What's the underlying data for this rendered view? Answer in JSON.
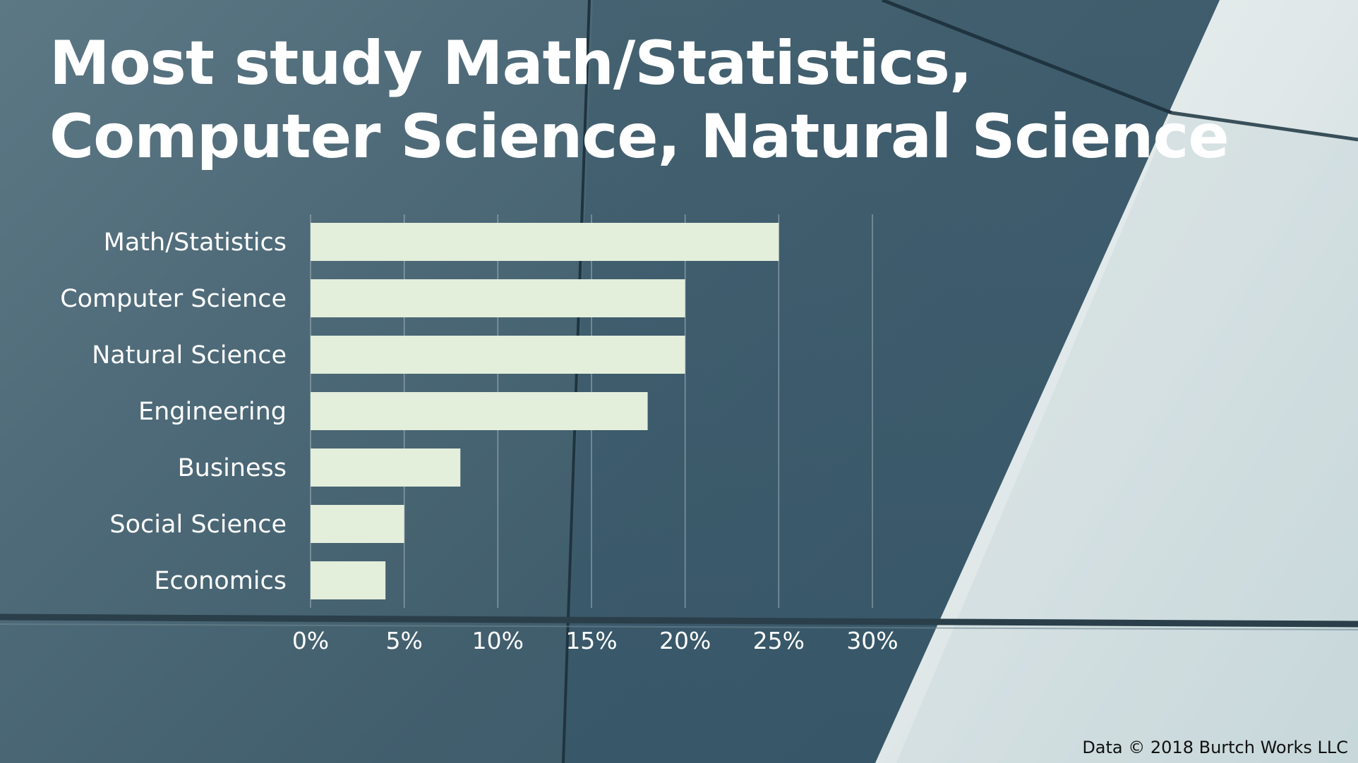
{
  "slide": {
    "title_lines": [
      "Most study Math/Statistics,",
      "Computer Science, Natural Science"
    ],
    "source": "Data © 2018 Burtch Works LLC"
  },
  "colors": {
    "bar": "#e3eedb",
    "text": "#ffffff",
    "background": "#4a6472"
  },
  "chart_data": {
    "type": "bar",
    "orientation": "horizontal",
    "categories": [
      "Math/Statistics",
      "Computer Science",
      "Natural Science",
      "Engineering",
      "Business",
      "Social Science",
      "Economics"
    ],
    "values": [
      25,
      20,
      20,
      18,
      8,
      5,
      4
    ],
    "xlim": [
      0,
      30
    ],
    "xticks": [
      0,
      5,
      10,
      15,
      20,
      25,
      30
    ],
    "xtick_labels": [
      "0%",
      "5%",
      "10%",
      "15%",
      "20%",
      "25%",
      "30%"
    ],
    "grid": "vertical",
    "legend": "none"
  }
}
